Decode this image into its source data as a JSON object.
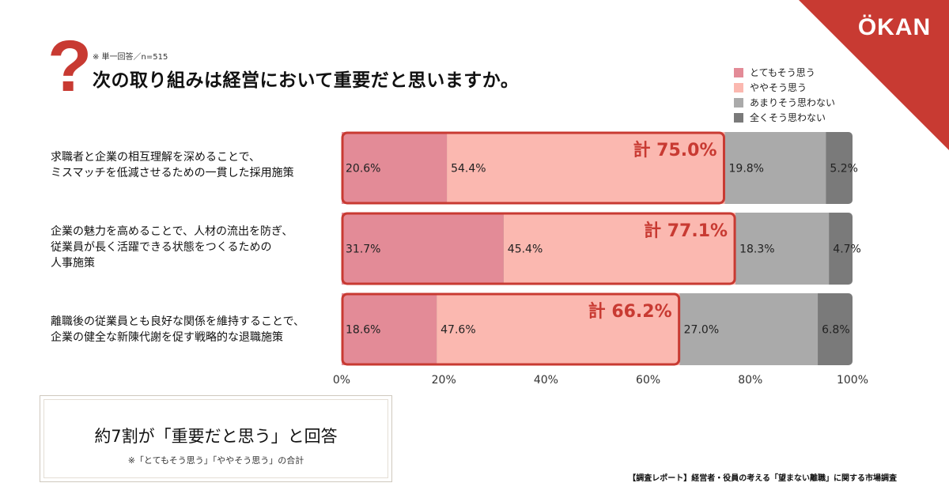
{
  "brand": {
    "logo": "ÖKAN",
    "color": "#c83a32"
  },
  "header": {
    "icon": "question-mark-icon",
    "note": "※ 単一回答／n=515",
    "title": "次の取り組みは経営において重要だと思いますか。"
  },
  "chart_data": {
    "type": "bar",
    "orientation": "horizontal",
    "stacked": true,
    "categories": [
      "求職者と企業の相互理解を深めることで、ミスマッチを低減させるための一貫した採用施策",
      "企業の魅力を高めることで、人材の流出を防ぎ、従業員が長く活躍できる状態をつくるための人事施策",
      "離職後の従業員とも良好な関係を維持することで、企業の健全な新陳代謝を促す戦略的な退職施策"
    ],
    "category_lines": [
      [
        "求職者と企業の相互理解を深めることで、",
        "ミスマッチを低減させるための一貫した採用施策"
      ],
      [
        "企業の魅力を高めることで、人材の流出を防ぎ、",
        "従業員が長く活躍できる状態をつくるための",
        "人事施策"
      ],
      [
        "離職後の従業員とも良好な関係を維持することで、",
        "企業の健全な新陳代謝を促す戦略的な退職施策"
      ]
    ],
    "series": [
      {
        "name": "とてもそう思う",
        "color": "#e38b97",
        "values": [
          20.6,
          31.7,
          18.6
        ],
        "labels": [
          "20.6%",
          "31.7%",
          "18.6%"
        ]
      },
      {
        "name": "ややそう思う",
        "color": "#fbb8b0",
        "values": [
          54.4,
          45.4,
          47.6
        ],
        "labels": [
          "54.4%",
          "45.4%",
          "47.6%"
        ]
      },
      {
        "name": "あまりそう思わない",
        "color": "#aaaaaa",
        "values": [
          19.8,
          18.3,
          27.0
        ],
        "labels": [
          "19.8%",
          "18.3%",
          "27.0%"
        ]
      },
      {
        "name": "全くそう思わない",
        "color": "#7a7a7a",
        "values": [
          5.2,
          4.7,
          6.8
        ],
        "labels": [
          "5.2%",
          "4.7%",
          "6.8%"
        ]
      }
    ],
    "totals": {
      "values": [
        75.0,
        77.1,
        66.2
      ],
      "labels": [
        "計 75.0%",
        "計 77.1%",
        "計 66.2%"
      ],
      "color": "#c83a32"
    },
    "xlim": [
      0,
      100
    ],
    "xticks": [
      0,
      20,
      40,
      60,
      80,
      100
    ],
    "xtick_labels": [
      "0%",
      "20%",
      "40%",
      "60%",
      "80%",
      "100%"
    ],
    "legend_position": "top-right"
  },
  "summary": {
    "main": "約7割が「重要だと思う」と回答",
    "sub": "※「とてもそう思う」「ややそう思う」の合計"
  },
  "footer": {
    "source": "【調査レポート】経営者・役員の考える「望まない離職」に関する市場調査"
  }
}
